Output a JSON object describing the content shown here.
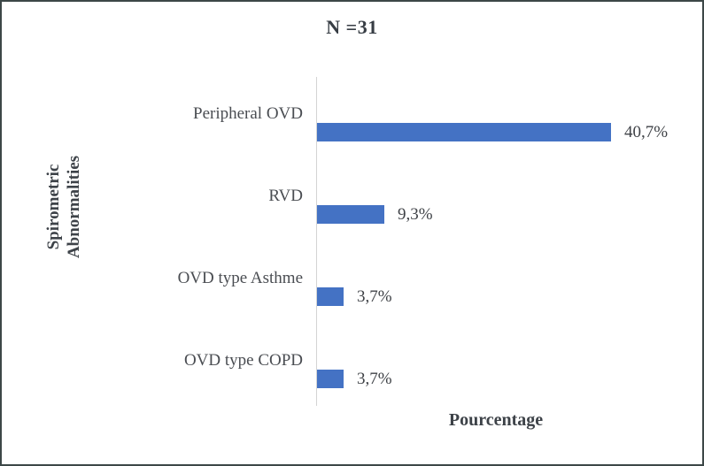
{
  "frame": {
    "background": "#ffffff",
    "border_color": "#3c4747"
  },
  "chart_data": {
    "type": "bar",
    "orientation": "horizontal",
    "title": "N =31",
    "xlabel": "Pourcentage",
    "ylabel": "Spirometric Abnormalities",
    "ylabel_lines": [
      "Spirometric",
      "Abnormalities"
    ],
    "categories": [
      "Peripheral OVD",
      "RVD",
      "OVD type Asthme",
      "OVD type COPD"
    ],
    "values": [
      40.7,
      9.3,
      3.7,
      3.7
    ],
    "value_labels": [
      "40,7%",
      "9,3%",
      "3,7%",
      "3,7%"
    ],
    "bar_color": "#4472c4",
    "axis_line_color": "#d4d4d4",
    "xlim": [
      0,
      45
    ],
    "grid": false,
    "legend": false
  }
}
